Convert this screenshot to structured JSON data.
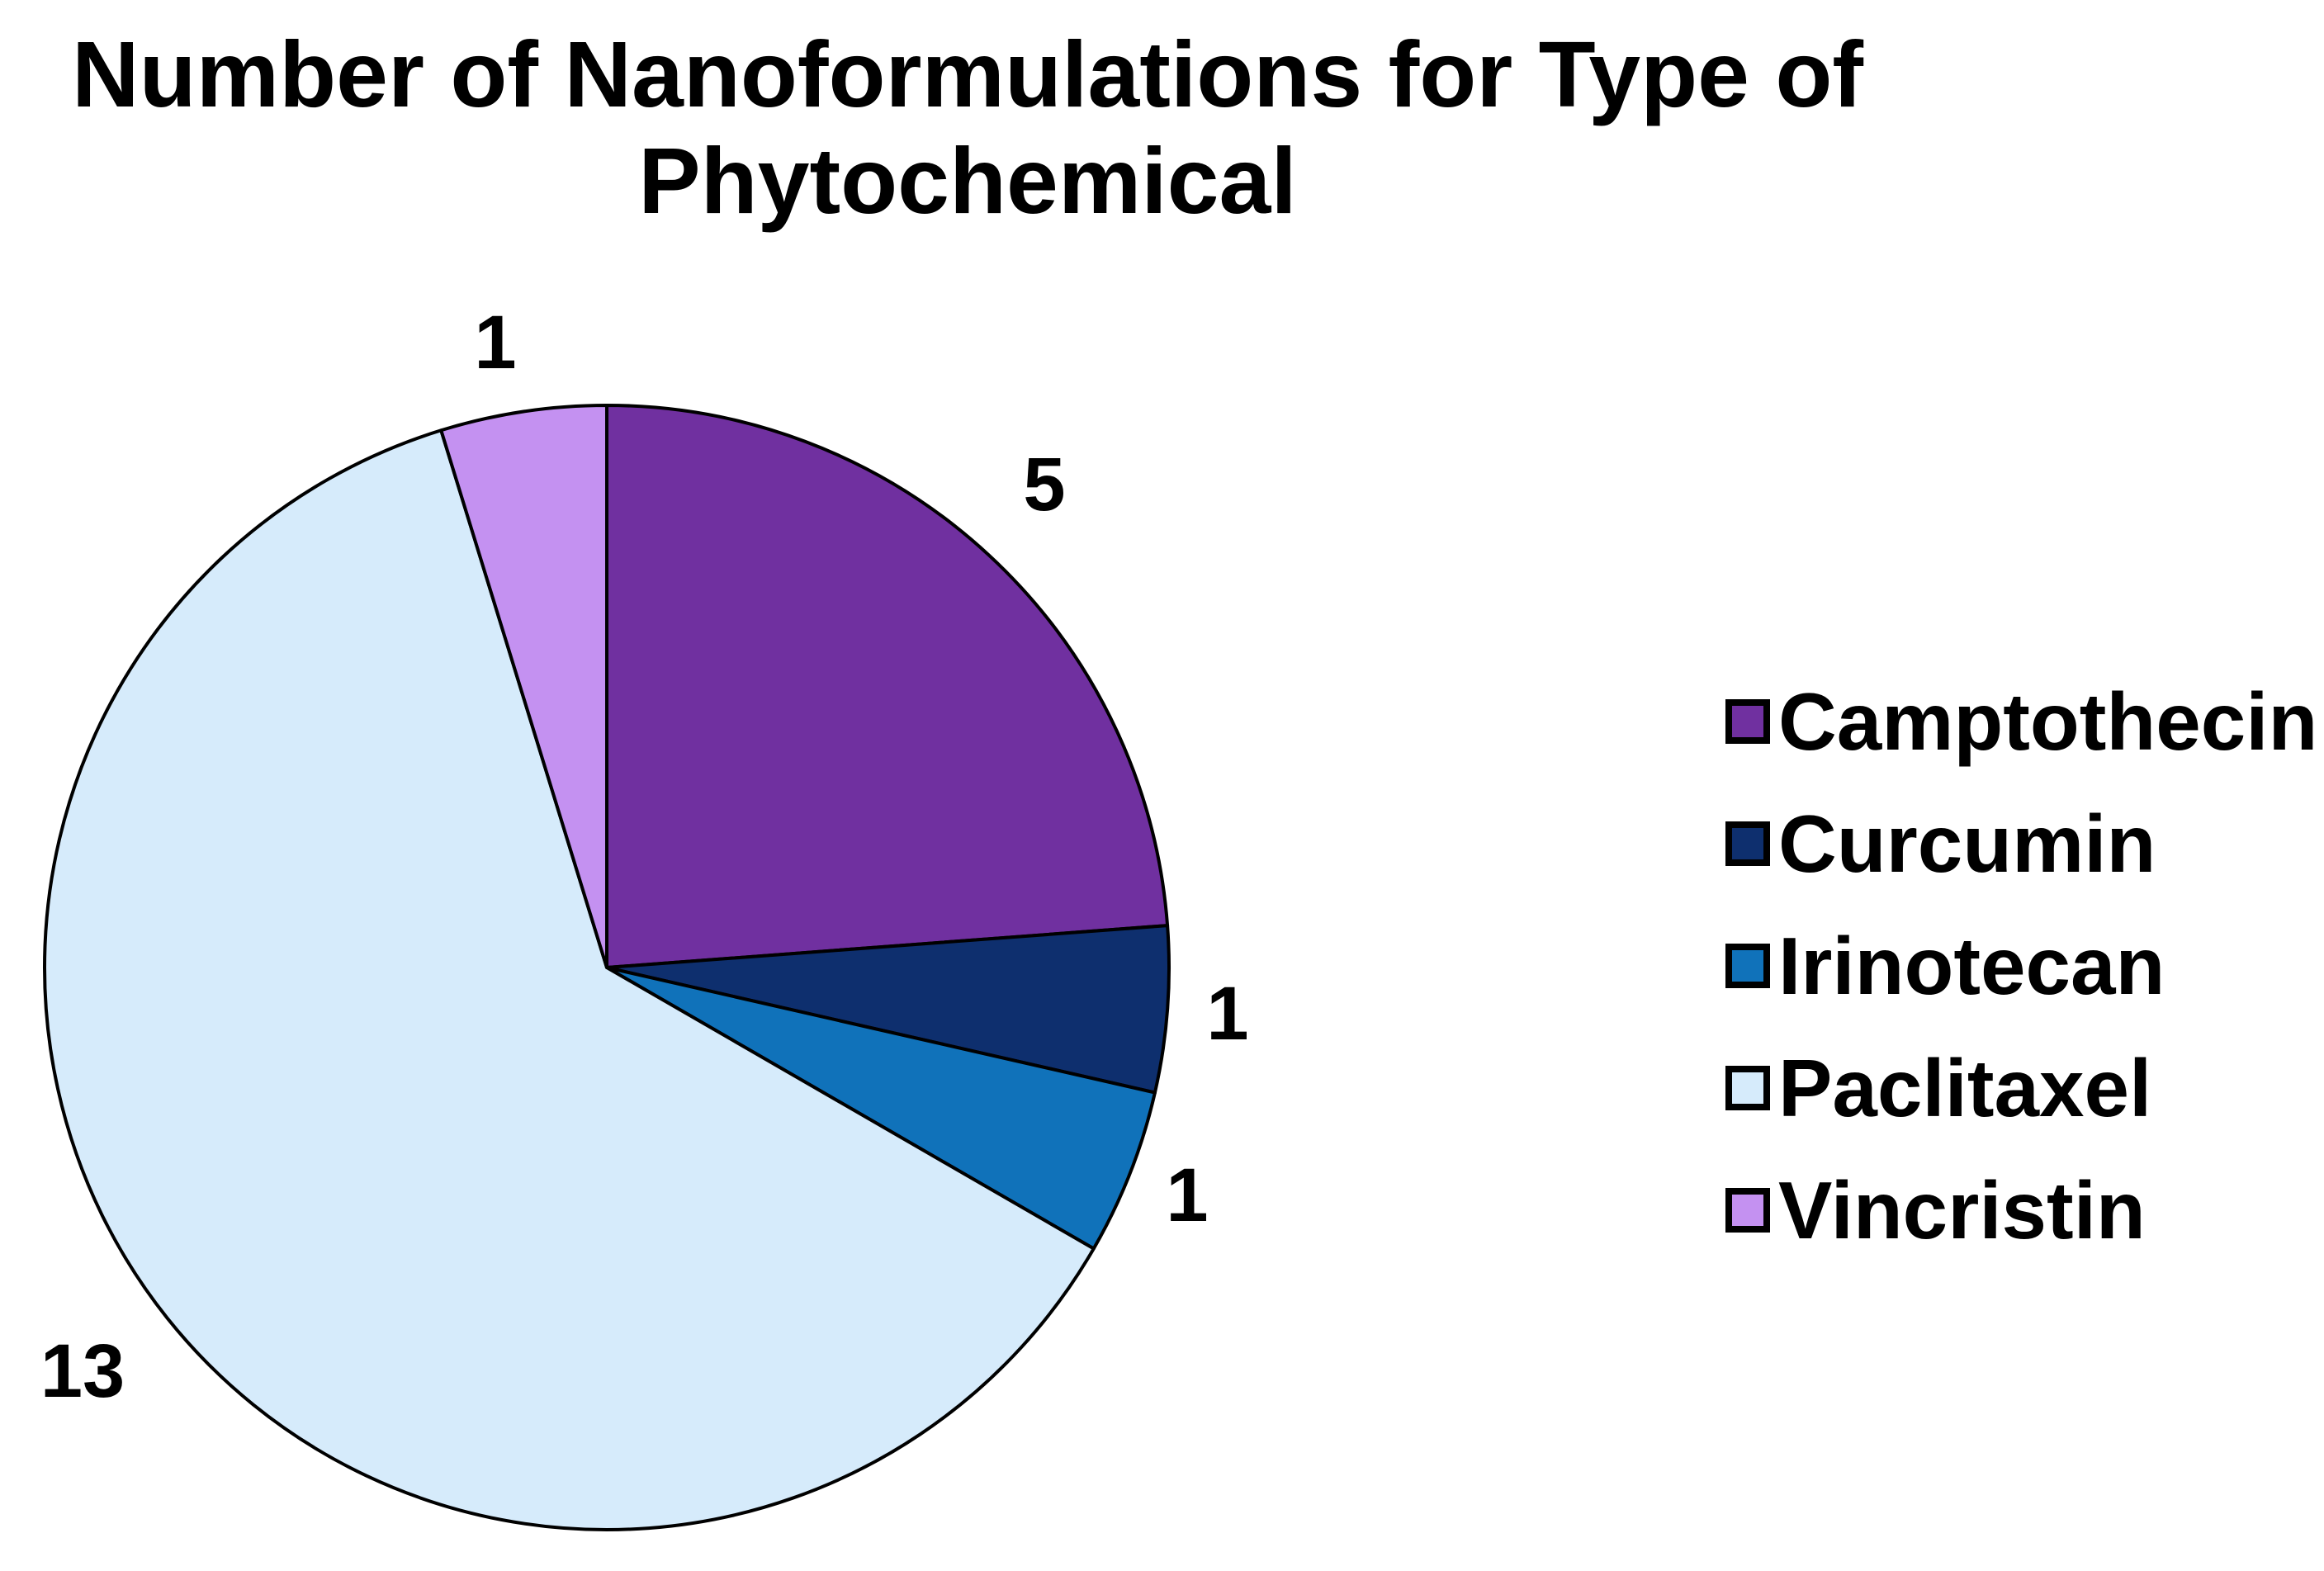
{
  "title_lines": [
    "Number of Nanoformulations for Type of",
    "Phytochemical"
  ],
  "chart_data": {
    "type": "pie",
    "title": "Number of Nanoformulations for Type of Phytochemical",
    "categories": [
      "Camptothecin",
      "Curcumin",
      "Irinotecan",
      "Paclitaxel",
      "Vincristin"
    ],
    "values": [
      5,
      1,
      1,
      13,
      1
    ],
    "colors": [
      "#7030A0",
      "#0E2F6E",
      "#1072BA",
      "#D6EBFB",
      "#C491F1"
    ],
    "start_angle": "12-oclock",
    "direction": "clockwise",
    "legend_position": "right",
    "data_label_style": "values outside slices",
    "outline_color": "#000000"
  }
}
